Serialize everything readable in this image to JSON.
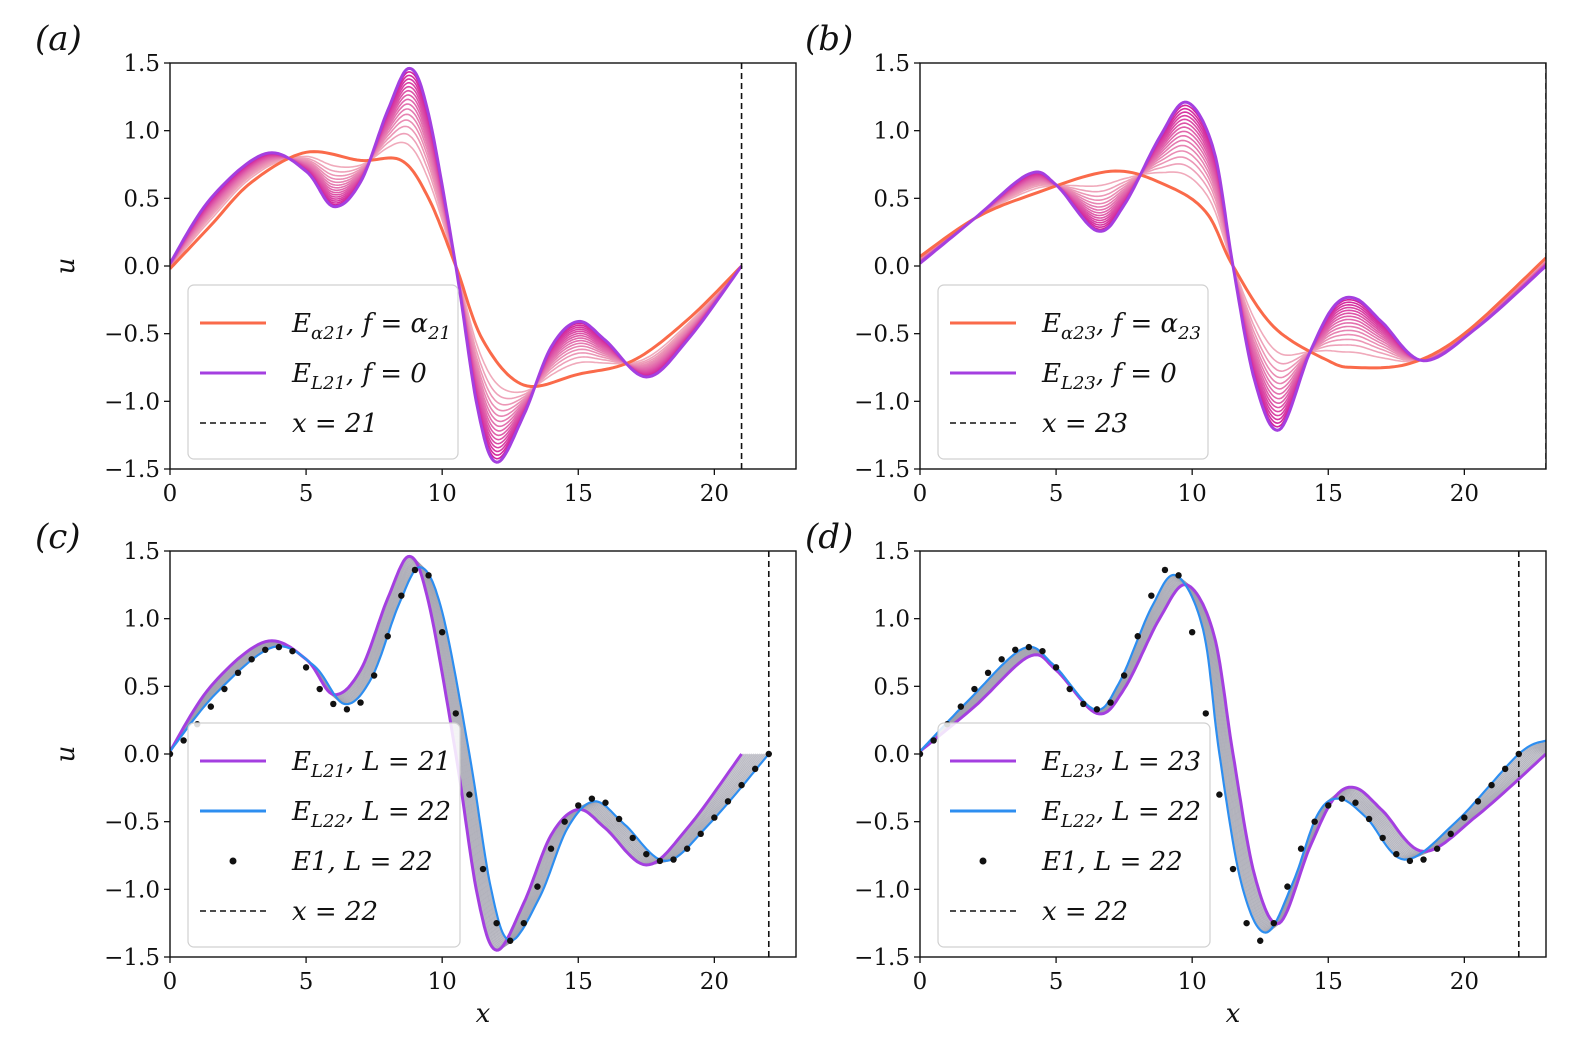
{
  "figure": {
    "panel_labels": [
      "(a)",
      "(b)",
      "(c)",
      "(d)"
    ]
  },
  "colors": {
    "family_start": "#f2b4bd",
    "family_end": "#d0199a",
    "alpha_curve": "#fa6a4a",
    "L_curve": "#a43fe0",
    "blue_curve": "#2d8ef0",
    "gray_band": "#9a9aa8",
    "dots": "#111111",
    "dashed": "#111111"
  },
  "chart_data": [
    {
      "type": "line",
      "panel": "(a)",
      "xlabel": "",
      "ylabel": "u",
      "xlim": [
        0,
        23
      ],
      "ylim": [
        -1.5,
        1.5
      ],
      "xticks": [
        "0",
        "5",
        "10",
        "15",
        "20"
      ],
      "yticks": [
        "−1.5",
        "−1.0",
        "−0.5",
        "0.0",
        "0.5",
        "1.0",
        "1.5"
      ],
      "legend_position": "lower-left",
      "vline_x": 21,
      "family_count": 16,
      "series": [
        {
          "name": "E_{α21}, f = α_{21}",
          "style": "alpha",
          "x": [
            0,
            1.5,
            3,
            5,
            7,
            8.5,
            9.5,
            10.5,
            11.5,
            13,
            15,
            17,
            19,
            21
          ],
          "y": [
            -0.02,
            0.3,
            0.62,
            0.84,
            0.78,
            0.78,
            0.5,
            0.0,
            -0.55,
            -0.88,
            -0.8,
            -0.7,
            -0.4,
            0.0
          ]
        },
        {
          "name": "E_{L21}, f = 0",
          "style": "L",
          "x": [
            0,
            1.5,
            3.5,
            5,
            6,
            7,
            8,
            8.8,
            9.5,
            10.5,
            11.3,
            12,
            13,
            14,
            15,
            16,
            17.5,
            19,
            21
          ],
          "y": [
            0.02,
            0.5,
            0.83,
            0.7,
            0.44,
            0.62,
            1.15,
            1.46,
            1.12,
            0.0,
            -1.05,
            -1.45,
            -1.1,
            -0.6,
            -0.41,
            -0.55,
            -0.82,
            -0.55,
            0.0
          ]
        },
        {
          "name": "x = 21",
          "style": "dashed"
        }
      ],
      "legend": [
        {
          "text": "E",
          "sub": "α21",
          "rest": ", f = α",
          "rest_sub": "21",
          "style": "alpha"
        },
        {
          "text": "E",
          "sub": "L21",
          "rest": ", f = 0",
          "rest_sub": "",
          "style": "L"
        },
        {
          "text": "x = 21",
          "sub": "",
          "rest": "",
          "rest_sub": "",
          "style": "dashed"
        }
      ]
    },
    {
      "type": "line",
      "panel": "(b)",
      "xlabel": "",
      "ylabel": "",
      "xlim": [
        0,
        23
      ],
      "ylim": [
        -1.5,
        1.5
      ],
      "xticks": [
        "0",
        "5",
        "10",
        "15",
        "20"
      ],
      "yticks": [
        "−1.5",
        "−1.0",
        "−0.5",
        "0.0",
        "0.5",
        "1.0",
        "1.5"
      ],
      "legend_position": "lower-left",
      "vline_x": 23,
      "family_count": 16,
      "series": [
        {
          "name": "E_{α23}, f = α_{23}",
          "style": "alpha",
          "x": [
            0,
            2,
            4,
            7,
            9,
            10.5,
            11.5,
            13,
            15,
            16,
            18,
            20,
            23
          ],
          "y": [
            0.07,
            0.35,
            0.52,
            0.7,
            0.6,
            0.4,
            0.0,
            -0.45,
            -0.7,
            -0.75,
            -0.72,
            -0.5,
            0.06
          ]
        },
        {
          "name": "E_{L23}, f = 0",
          "style": "L",
          "x": [
            0,
            2,
            4,
            5,
            6.5,
            7.5,
            8.8,
            9.8,
            10.8,
            11.5,
            12.3,
            13.2,
            14.3,
            15.2,
            16,
            17,
            18.5,
            20.5,
            23
          ],
          "y": [
            0.02,
            0.35,
            0.68,
            0.6,
            0.26,
            0.45,
            0.95,
            1.21,
            0.85,
            0.0,
            -0.85,
            -1.21,
            -0.65,
            -0.3,
            -0.24,
            -0.42,
            -0.7,
            -0.45,
            0.0
          ]
        },
        {
          "name": "x = 23",
          "style": "dashed"
        }
      ],
      "legend": [
        {
          "text": "E",
          "sub": "α23",
          "rest": ", f = α",
          "rest_sub": "23",
          "style": "alpha"
        },
        {
          "text": "E",
          "sub": "L23",
          "rest": ", f = 0",
          "rest_sub": "",
          "style": "L"
        },
        {
          "text": "x = 23",
          "sub": "",
          "rest": "",
          "rest_sub": "",
          "style": "dashed"
        }
      ]
    },
    {
      "type": "line",
      "panel": "(c)",
      "xlabel": "x",
      "ylabel": "u",
      "xlim": [
        0,
        23
      ],
      "ylim": [
        -1.5,
        1.5
      ],
      "xticks": [
        "0",
        "5",
        "10",
        "15",
        "20"
      ],
      "yticks": [
        "−1.5",
        "−1.0",
        "−0.5",
        "0.0",
        "0.5",
        "1.0",
        "1.5"
      ],
      "legend_position": "lower-left",
      "vline_x": 22,
      "series": [
        {
          "name": "E_{L21}, L = 21",
          "style": "L",
          "x": [
            0,
            1.5,
            3.5,
            5,
            6,
            7,
            8,
            8.8,
            9.5,
            10.5,
            11.3,
            12,
            13,
            14,
            15,
            16,
            17.5,
            19,
            21
          ],
          "y": [
            0.02,
            0.5,
            0.83,
            0.7,
            0.44,
            0.62,
            1.15,
            1.46,
            1.12,
            0.0,
            -1.05,
            -1.45,
            -1.1,
            -0.6,
            -0.41,
            -0.55,
            -0.82,
            -0.55,
            0.0
          ]
        },
        {
          "name": "E_{L22}, L = 22",
          "style": "blue",
          "x": [
            0,
            1.7,
            3.8,
            5.3,
            6.4,
            7.4,
            8.4,
            9.2,
            10,
            11,
            11.8,
            12.5,
            13.6,
            14.6,
            15.6,
            16.7,
            18.2,
            19.8,
            22
          ],
          "y": [
            0.02,
            0.45,
            0.79,
            0.65,
            0.37,
            0.56,
            1.1,
            1.38,
            1.05,
            0.0,
            -1.0,
            -1.38,
            -1.05,
            -0.55,
            -0.35,
            -0.52,
            -0.79,
            -0.52,
            0.0
          ]
        },
        {
          "name": "E1, L = 22",
          "style": "dots",
          "x": [
            0,
            0.5,
            1,
            1.5,
            2,
            2.5,
            3,
            3.5,
            4,
            4.5,
            5,
            5.5,
            6,
            6.5,
            7,
            7.5,
            8,
            8.5,
            9,
            9.5,
            10,
            10.5,
            11,
            11.5,
            12,
            12.5,
            13,
            13.5,
            14,
            14.5,
            15,
            15.5,
            16,
            16.5,
            17,
            17.5,
            18,
            18.5,
            19,
            19.5,
            20,
            20.5,
            21,
            21.5,
            22
          ],
          "y": [
            0.0,
            0.1,
            0.22,
            0.35,
            0.48,
            0.6,
            0.7,
            0.77,
            0.79,
            0.76,
            0.64,
            0.48,
            0.37,
            0.33,
            0.38,
            0.58,
            0.87,
            1.17,
            1.36,
            1.32,
            0.9,
            0.3,
            -0.3,
            -0.85,
            -1.25,
            -1.38,
            -1.25,
            -0.98,
            -0.7,
            -0.5,
            -0.38,
            -0.33,
            -0.36,
            -0.48,
            -0.62,
            -0.74,
            -0.79,
            -0.78,
            -0.7,
            -0.59,
            -0.47,
            -0.35,
            -0.23,
            -0.11,
            0.0
          ]
        },
        {
          "name": "x = 22",
          "style": "dashed"
        }
      ],
      "legend": [
        {
          "text": "E",
          "sub": "L21",
          "rest": ", L = 21",
          "rest_sub": "",
          "style": "L"
        },
        {
          "text": "E",
          "sub": "L22",
          "rest": ", L = 22",
          "rest_sub": "",
          "style": "blue"
        },
        {
          "text": "E1, L = 22",
          "sub": "",
          "rest": "",
          "rest_sub": "",
          "style": "dots"
        },
        {
          "text": "x = 22",
          "sub": "",
          "rest": "",
          "rest_sub": "",
          "style": "dashed"
        }
      ]
    },
    {
      "type": "line",
      "panel": "(d)",
      "xlabel": "x",
      "ylabel": "",
      "xlim": [
        0,
        23
      ],
      "ylim": [
        -1.5,
        1.5
      ],
      "xticks": [
        "0",
        "5",
        "10",
        "15",
        "20"
      ],
      "yticks": [
        "−1.5",
        "−1.0",
        "−0.5",
        "0.0",
        "0.5",
        "1.0",
        "1.5"
      ],
      "legend_position": "lower-left",
      "vline_x": 22,
      "series": [
        {
          "name": "E_{L23}, L = 23",
          "style": "L",
          "x": [
            0,
            2,
            4,
            5,
            6.5,
            7.5,
            8.8,
            9.8,
            10.8,
            11.5,
            12.3,
            13.2,
            14.3,
            15.2,
            16,
            17,
            18.5,
            20.5,
            23
          ],
          "y": [
            0.02,
            0.35,
            0.72,
            0.62,
            0.3,
            0.48,
            1.0,
            1.25,
            0.88,
            0.0,
            -0.9,
            -1.25,
            -0.7,
            -0.33,
            -0.25,
            -0.42,
            -0.72,
            -0.45,
            0.0
          ]
        },
        {
          "name": "E_{L22}, L = 22",
          "style": "blue",
          "x": [
            0,
            1.8,
            3.8,
            4.9,
            6.4,
            7.3,
            8.5,
            9.4,
            10.4,
            11.0,
            11.8,
            12.7,
            13.7,
            14.6,
            15.4,
            16.4,
            17.8,
            19.7,
            22,
            23
          ],
          "y": [
            0.02,
            0.4,
            0.78,
            0.66,
            0.33,
            0.52,
            1.08,
            1.32,
            0.92,
            0.0,
            -0.95,
            -1.32,
            -0.95,
            -0.45,
            -0.33,
            -0.47,
            -0.78,
            -0.5,
            0.0,
            0.1
          ]
        },
        {
          "name": "E1, L = 22",
          "style": "dots",
          "x": [
            0,
            0.5,
            1,
            1.5,
            2,
            2.5,
            3,
            3.5,
            4,
            4.5,
            5,
            5.5,
            6,
            6.5,
            7,
            7.5,
            8,
            8.5,
            9,
            9.5,
            10,
            10.5,
            11,
            11.5,
            12,
            12.5,
            13,
            13.5,
            14,
            14.5,
            15,
            15.5,
            16,
            16.5,
            17,
            17.5,
            18,
            18.5,
            19,
            19.5,
            20,
            20.5,
            21,
            21.5,
            22
          ],
          "y": [
            0.0,
            0.1,
            0.22,
            0.35,
            0.48,
            0.6,
            0.7,
            0.77,
            0.79,
            0.76,
            0.64,
            0.48,
            0.37,
            0.33,
            0.38,
            0.58,
            0.87,
            1.17,
            1.36,
            1.32,
            0.9,
            0.3,
            -0.3,
            -0.85,
            -1.25,
            -1.38,
            -1.25,
            -0.98,
            -0.7,
            -0.5,
            -0.38,
            -0.33,
            -0.36,
            -0.48,
            -0.62,
            -0.74,
            -0.79,
            -0.78,
            -0.7,
            -0.59,
            -0.47,
            -0.35,
            -0.23,
            -0.11,
            0.0
          ]
        },
        {
          "name": "x = 22",
          "style": "dashed"
        }
      ],
      "legend": [
        {
          "text": "E",
          "sub": "L23",
          "rest": ", L = 23",
          "rest_sub": "",
          "style": "L"
        },
        {
          "text": "E",
          "sub": "L22",
          "rest": ", L = 22",
          "rest_sub": "",
          "style": "blue"
        },
        {
          "text": "E1, L = 22",
          "sub": "",
          "rest": "",
          "rest_sub": "",
          "style": "dots"
        },
        {
          "text": "x = 22",
          "sub": "",
          "rest": "",
          "rest_sub": "",
          "style": "dashed"
        }
      ]
    }
  ]
}
